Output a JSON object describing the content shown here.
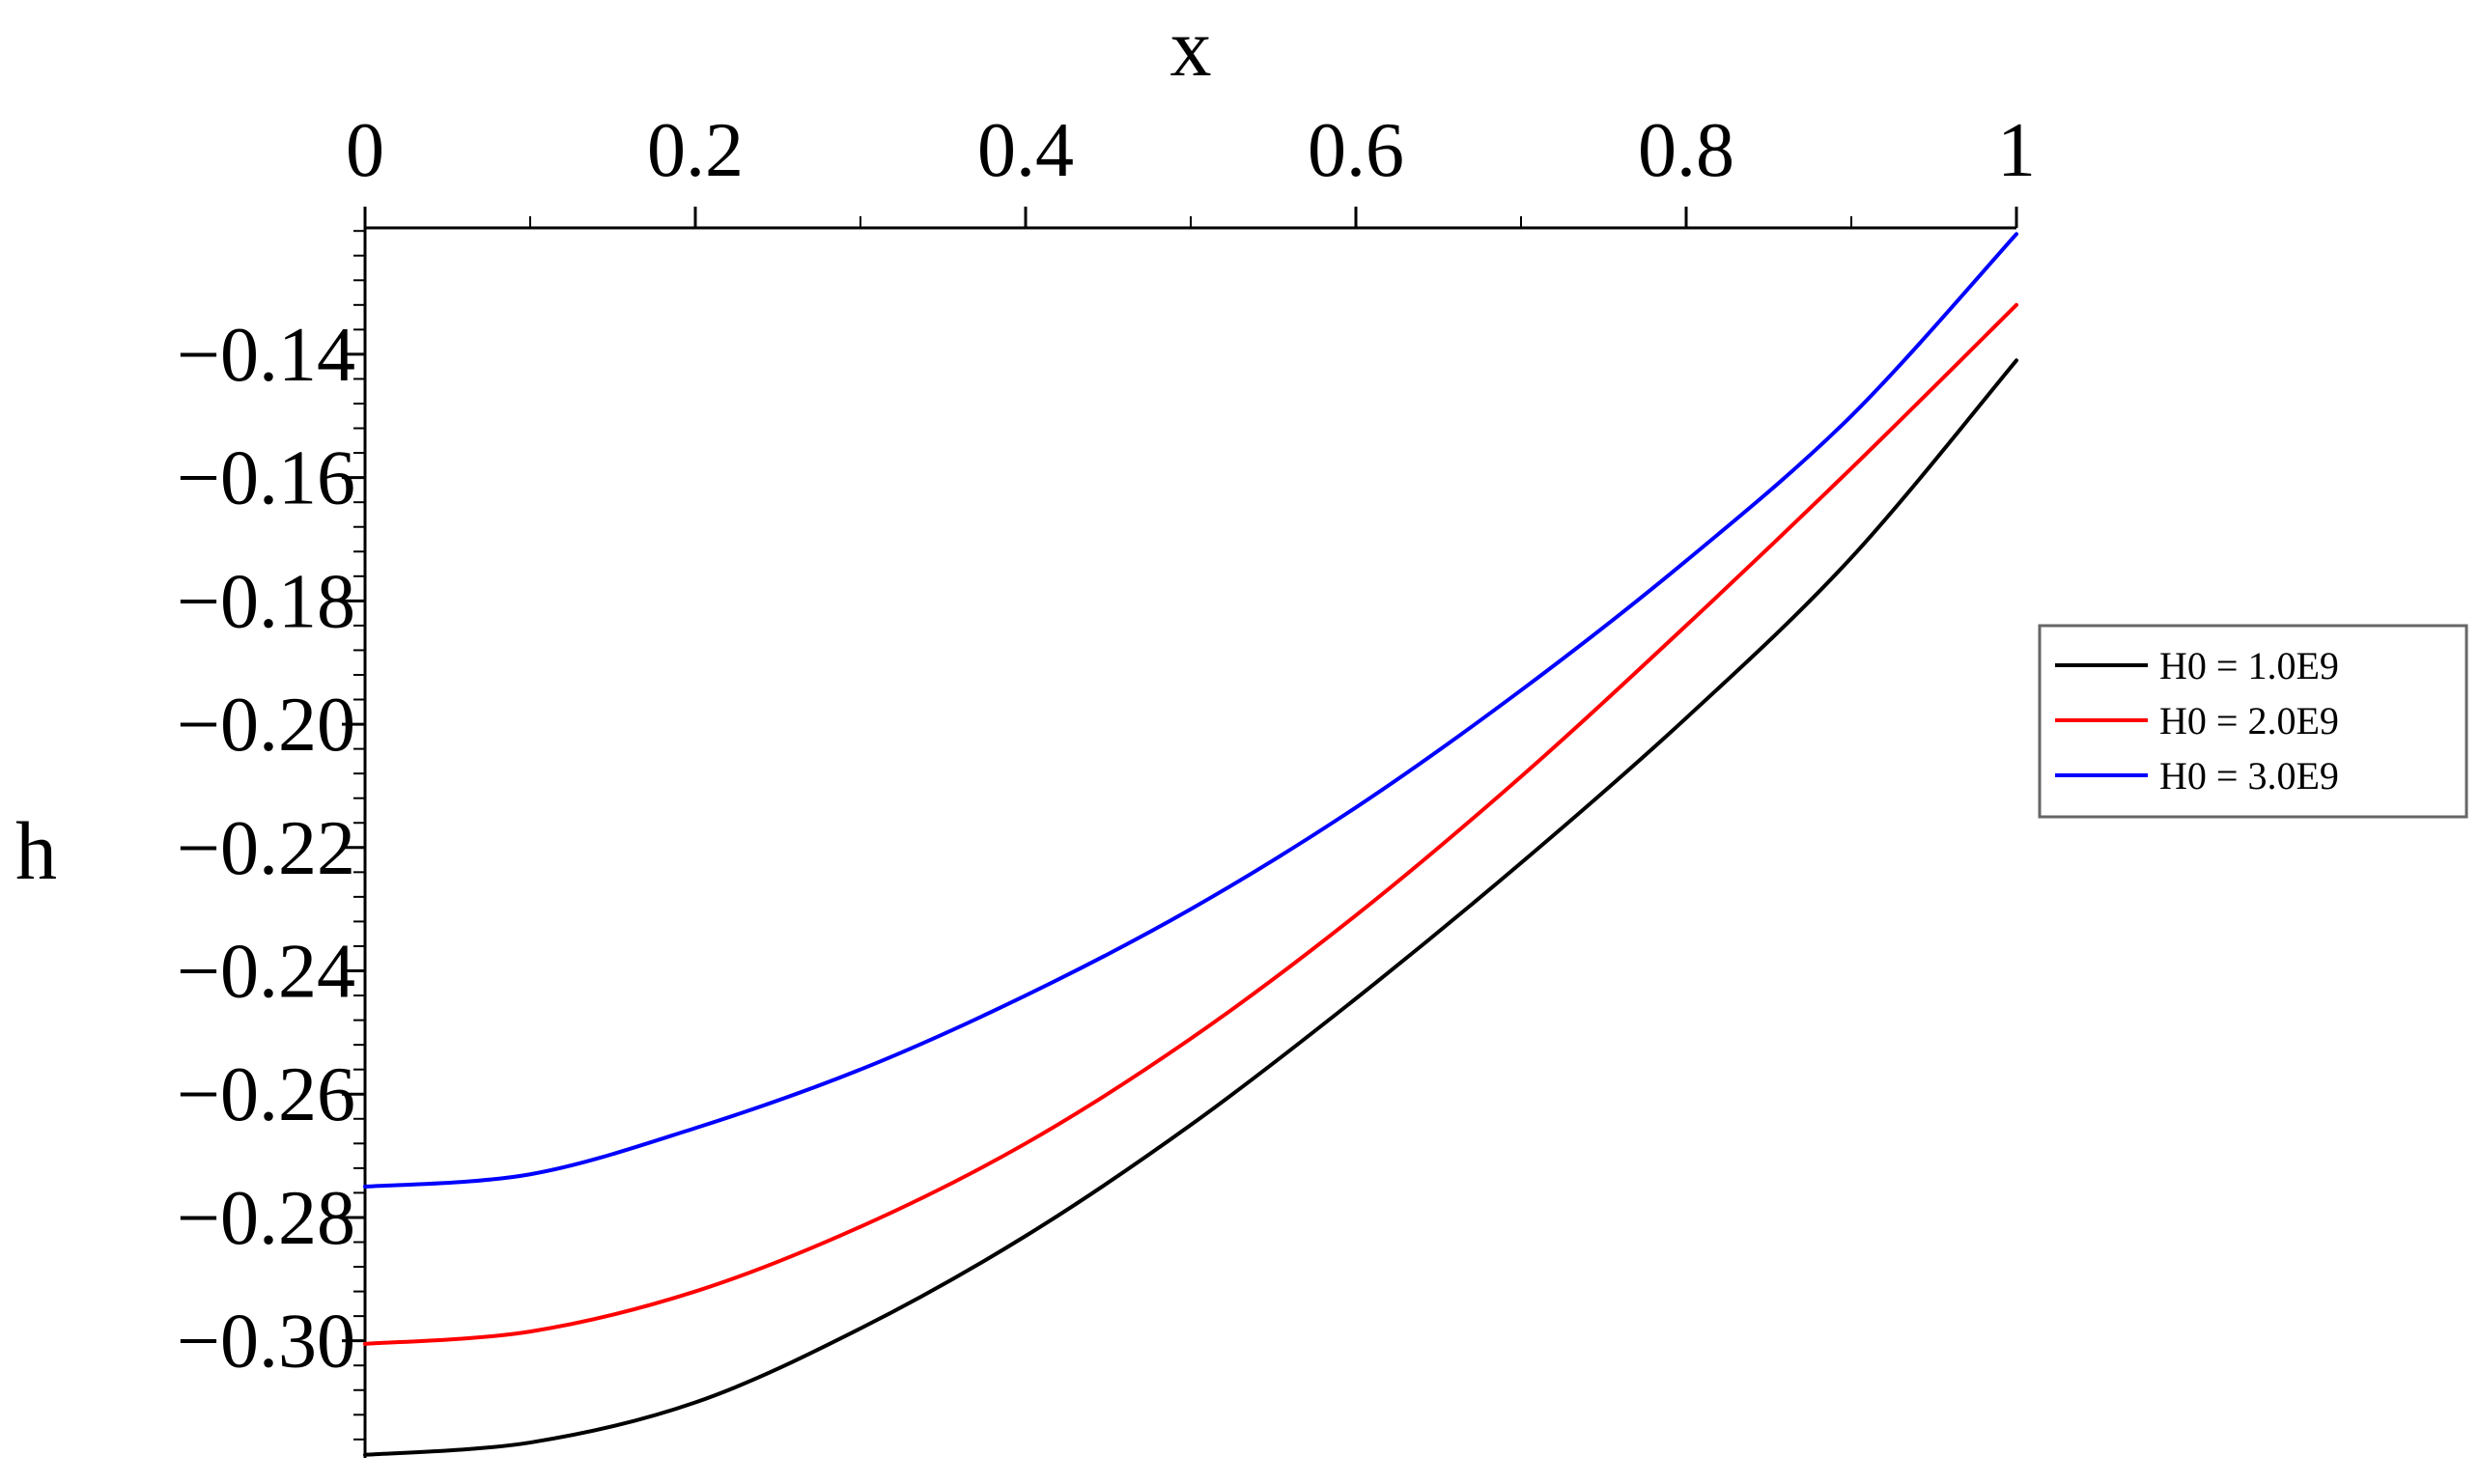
{
  "chart_data": {
    "type": "line",
    "xlabel": "x",
    "ylabel": "h",
    "xlim": [
      0,
      1
    ],
    "ylim": [
      -0.319,
      -0.1195
    ],
    "x_ticks": [
      0,
      0.2,
      0.4,
      0.6,
      0.8,
      1
    ],
    "x_tick_labels": [
      "0",
      "0.2",
      "0.4",
      "0.6",
      "0.8",
      "1"
    ],
    "y_ticks": [
      -0.14,
      -0.16,
      -0.18,
      -0.2,
      -0.22,
      -0.24,
      -0.26,
      -0.28,
      -0.3
    ],
    "y_tick_labels": [
      "−0.14",
      "−0.16",
      "−0.18",
      "−0.20",
      "−0.22",
      "−0.24",
      "−0.26",
      "−0.28",
      "−0.30"
    ],
    "x_axis_position": "top",
    "grid": false,
    "legend_position": "right",
    "x": [
      0,
      0.1,
      0.2,
      0.3,
      0.4,
      0.5,
      0.6,
      0.7,
      0.8,
      0.9,
      1.0
    ],
    "series": [
      {
        "name": "H0 = 1.0E9",
        "color": "#000000",
        "values": [
          -0.3185,
          -0.3165,
          -0.31,
          -0.298,
          -0.283,
          -0.265,
          -0.2445,
          -0.2225,
          -0.199,
          -0.173,
          -0.141
        ]
      },
      {
        "name": "H0 = 2.0E9",
        "color": "#ff0000",
        "values": [
          -0.3005,
          -0.2985,
          -0.292,
          -0.2815,
          -0.268,
          -0.251,
          -0.231,
          -0.2085,
          -0.184,
          -0.1585,
          -0.132
        ]
      },
      {
        "name": "H0 = 3.0E9",
        "color": "#0000ff",
        "values": [
          -0.275,
          -0.273,
          -0.2655,
          -0.256,
          -0.244,
          -0.23,
          -0.2135,
          -0.1945,
          -0.1735,
          -0.15,
          -0.1205
        ]
      }
    ]
  }
}
